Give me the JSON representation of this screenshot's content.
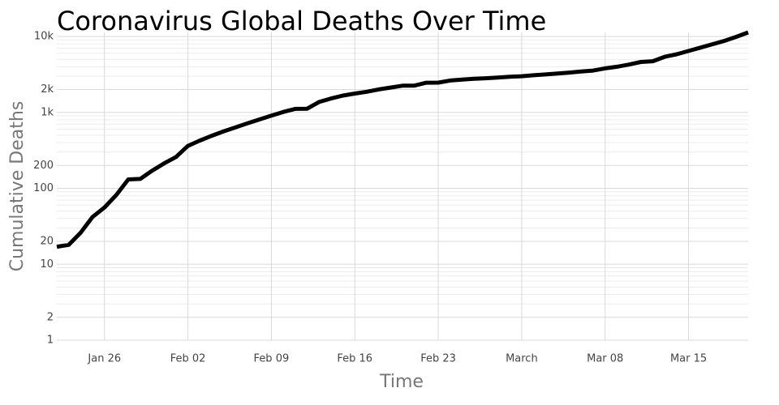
{
  "chart_data": {
    "type": "line",
    "title": "Coronavirus Global Deaths Over Time",
    "xlabel": "Time",
    "ylabel": "Cumulative Deaths",
    "log_y": true,
    "grid": true,
    "categories": [
      "Jan 22",
      "Jan 23",
      "Jan 24",
      "Jan 25",
      "Jan 26",
      "Jan 27",
      "Jan 28",
      "Jan 29",
      "Jan 30",
      "Jan 31",
      "Feb 01",
      "Feb 02",
      "Feb 03",
      "Feb 04",
      "Feb 05",
      "Feb 06",
      "Feb 07",
      "Feb 08",
      "Feb 09",
      "Feb 10",
      "Feb 11",
      "Feb 12",
      "Feb 13",
      "Feb 14",
      "Feb 15",
      "Feb 16",
      "Feb 17",
      "Feb 18",
      "Feb 19",
      "Feb 20",
      "Feb 21",
      "Feb 22",
      "Feb 23",
      "Feb 24",
      "Feb 25",
      "Feb 26",
      "Feb 27",
      "Feb 28",
      "Feb 29",
      "Mar 01",
      "Mar 02",
      "Mar 03",
      "Mar 04",
      "Mar 05",
      "Mar 06",
      "Mar 07",
      "Mar 08",
      "Mar 09",
      "Mar 10",
      "Mar 11",
      "Mar 12",
      "Mar 13",
      "Mar 14",
      "Mar 15",
      "Mar 16",
      "Mar 17",
      "Mar 18",
      "Mar 19",
      "Mar 20"
    ],
    "series": [
      {
        "name": "Deaths",
        "color": "#000000",
        "values": [
          17,
          18,
          26,
          42,
          56,
          82,
          131,
          133,
          171,
          213,
          259,
          362,
          426,
          492,
          564,
          634,
          719,
          806,
          906,
          1013,
          1113,
          1118,
          1371,
          1523,
          1666,
          1770,
          1868,
          2007,
          2122,
          2247,
          2251,
          2458,
          2469,
          2629,
          2708,
          2770,
          2814,
          2872,
          2941,
          2996,
          3085,
          3160,
          3254,
          3348,
          3460,
          3558,
          3802,
          3988,
          4262,
          4615,
          4720,
          5404,
          5819,
          6440,
          7126,
          7905,
          8733,
          9867,
          11299
        ]
      }
    ],
    "xticks": [
      "Jan 26",
      "Feb 02",
      "Feb 09",
      "Feb 16",
      "Feb 23",
      {
        "value": "Mar 01",
        "label": "March"
      },
      "Mar 08",
      "Mar 15"
    ],
    "ylim": [
      1,
      10000
    ],
    "yticks": [
      1,
      2,
      10,
      20,
      100,
      200,
      {
        "value": 1000,
        "label": "1k"
      },
      {
        "value": 2000,
        "label": "2k"
      },
      {
        "value": 10000,
        "label": "10k"
      }
    ],
    "yminor_ticks": [
      3,
      4,
      5,
      6,
      7,
      8,
      9,
      30,
      40,
      50,
      60,
      70,
      80,
      90,
      300,
      400,
      500,
      600,
      700,
      800,
      900,
      3000,
      4000,
      5000,
      6000,
      7000,
      8000,
      9000
    ]
  }
}
